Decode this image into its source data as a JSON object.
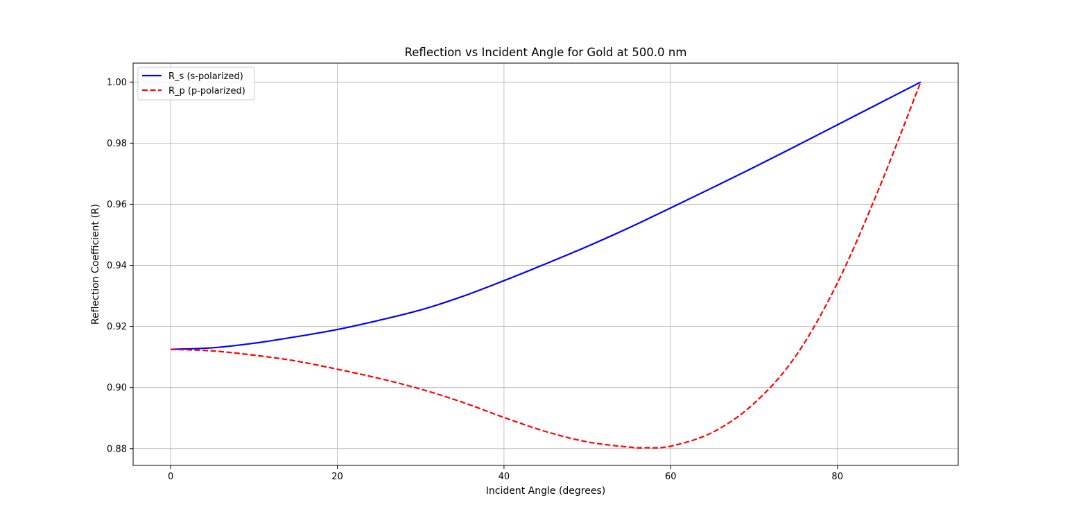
{
  "chart_data": {
    "type": "line",
    "title": "Reflection vs Incident Angle for Gold at 500.0 nm",
    "xlabel": "Incident Angle (degrees)",
    "ylabel": "Reflection Coefficient (R)",
    "xlim": [
      -4.5,
      94.5
    ],
    "ylim": [
      0.8745,
      1.0062
    ],
    "grid": true,
    "legend_position": "top-left",
    "x_ticks": [
      0,
      20,
      40,
      60,
      80
    ],
    "x_tick_labels": [
      "0",
      "20",
      "40",
      "60",
      "80"
    ],
    "y_ticks": [
      0.88,
      0.9,
      0.92,
      0.94,
      0.96,
      0.98,
      1.0
    ],
    "y_tick_labels": [
      "0.88",
      "0.90",
      "0.92",
      "0.94",
      "0.96",
      "0.98",
      "1.00"
    ],
    "series": [
      {
        "name": "R_s (s-polarized)",
        "color": "#0000ff",
        "style": "solid",
        "x": [
          0,
          5,
          10,
          15,
          20,
          25,
          30,
          35,
          40,
          45,
          50,
          55,
          60,
          65,
          70,
          75,
          80,
          85,
          90
        ],
        "y": [
          0.9125,
          0.913,
          0.9145,
          0.9166,
          0.919,
          0.922,
          0.9254,
          0.9298,
          0.935,
          0.9405,
          0.9462,
          0.9523,
          0.9588,
          0.9654,
          0.9721,
          0.979,
          0.986,
          0.993,
          1.0
        ]
      },
      {
        "name": "R_p (p-polarized)",
        "color": "#ff0000",
        "style": "dashed",
        "x": [
          0,
          5,
          10,
          15,
          20,
          25,
          30,
          35,
          40,
          45,
          50,
          55,
          57,
          60,
          65,
          70,
          75,
          80,
          85,
          90
        ],
        "y": [
          0.9125,
          0.912,
          0.9106,
          0.9087,
          0.906,
          0.903,
          0.8995,
          0.8952,
          0.8902,
          0.8856,
          0.8822,
          0.8805,
          0.8803,
          0.8808,
          0.8853,
          0.8948,
          0.9103,
          0.9342,
          0.9652,
          1.0
        ]
      }
    ]
  }
}
